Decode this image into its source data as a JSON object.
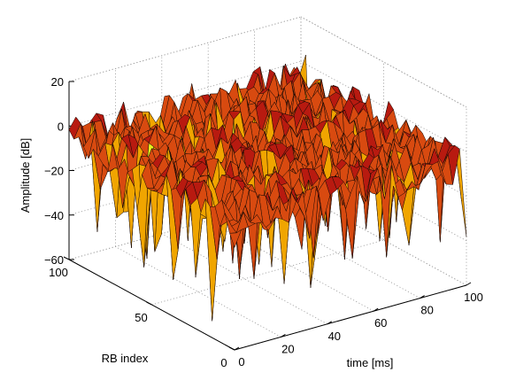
{
  "chart_data": {
    "type": "surface",
    "title": "",
    "xlabel": "time [ms]",
    "ylabel": "RB index",
    "zlabel": "Amplitude [dB]",
    "x_range": [
      0,
      100
    ],
    "y_range": [
      0,
      100
    ],
    "z_range": [
      -60,
      20
    ],
    "x_ticks": [
      "0",
      "20",
      "40",
      "60",
      "80",
      "100"
    ],
    "y_ticks": [
      "0",
      "50",
      "100"
    ],
    "z_ticks": [
      "20",
      "0",
      "−20",
      "−40",
      "−60"
    ],
    "grid": true,
    "colormap": "hot",
    "surface_level_db": -5,
    "surface_min_db": -55,
    "surface_max_db": 15
  }
}
